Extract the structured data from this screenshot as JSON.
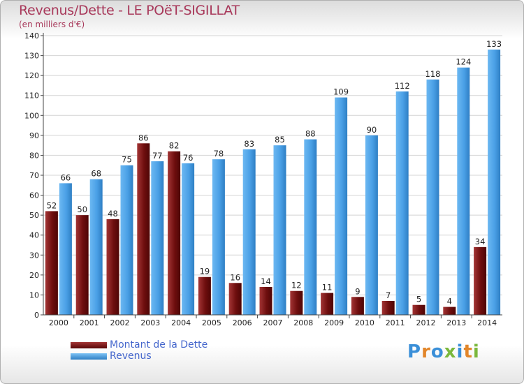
{
  "title": "Revenus/Dette - LE POëT-SIGILLAT",
  "subtitle": "(en milliers d'€)",
  "chart_data": {
    "type": "bar",
    "categories": [
      "2000",
      "2001",
      "2002",
      "2003",
      "2004",
      "2005",
      "2006",
      "2007",
      "2008",
      "2009",
      "2010",
      "2011",
      "2012",
      "2013",
      "2014"
    ],
    "series": [
      {
        "name": "Montant de la Dette",
        "color": "#7a1010",
        "values": [
          52,
          50,
          48,
          86,
          82,
          19,
          16,
          14,
          12,
          11,
          9,
          7,
          5,
          4,
          34
        ]
      },
      {
        "name": "Revenus",
        "color": "#4aa0e6",
        "values": [
          66,
          68,
          75,
          77,
          76,
          78,
          83,
          85,
          88,
          109,
          90,
          112,
          118,
          124,
          133
        ]
      }
    ],
    "ylim": [
      0,
      140
    ],
    "yticks": [
      0,
      10,
      20,
      30,
      40,
      50,
      60,
      70,
      80,
      90,
      100,
      110,
      120,
      130,
      140
    ],
    "grid": true,
    "legend_position": "bottom-left"
  },
  "legend": {
    "dette_label": "Montant de la Dette",
    "revenus_label": "Revenus"
  },
  "logo": {
    "letters": [
      "P",
      "r",
      "o",
      "x",
      "i",
      "t",
      "i"
    ],
    "colors": [
      "#3a8fd8",
      "#e2862a",
      "#3a8fd8",
      "#7ab83c",
      "#3a8fd8",
      "#e2862a",
      "#7ab83c"
    ]
  }
}
